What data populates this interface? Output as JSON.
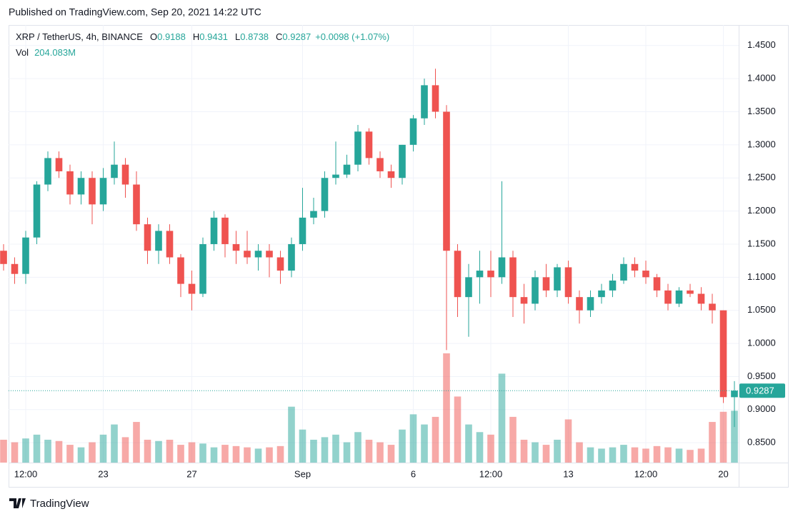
{
  "chart_data": {
    "type": "candlestick",
    "published": "Published on TradingView.com, Sep 20, 2021 14:22 UTC",
    "symbol": "XRP / TetherUS, 4h, BINANCE",
    "ohlc_letters": [
      "O",
      "H",
      "L",
      "C"
    ],
    "change": "+0.0098 (+1.07%)",
    "volume_name": "Vol",
    "last_volume_label": "204.083M",
    "brand": "TradingView",
    "up_color": "#26a69a",
    "down_color": "#ef5350",
    "grid": true,
    "categories": [
      null,
      null,
      "12:00",
      null,
      null,
      null,
      null,
      null,
      null,
      "23",
      null,
      null,
      null,
      null,
      null,
      null,
      null,
      "27",
      null,
      null,
      null,
      null,
      null,
      null,
      null,
      null,
      null,
      "Sep",
      null,
      null,
      null,
      null,
      null,
      null,
      null,
      null,
      null,
      "6",
      null,
      null,
      null,
      null,
      null,
      null,
      "12:00",
      null,
      null,
      null,
      null,
      null,
      null,
      "13",
      null,
      null,
      null,
      null,
      null,
      null,
      "12:00",
      null,
      null,
      null,
      null,
      null,
      null,
      "20",
      null
    ],
    "open": [
      1.14,
      1.12,
      1.105,
      1.16,
      1.24,
      1.28,
      1.26,
      1.225,
      1.25,
      1.21,
      1.25,
      1.27,
      1.24,
      1.18,
      1.14,
      1.17,
      1.13,
      1.09,
      1.075,
      1.15,
      1.19,
      1.15,
      1.14,
      1.13,
      1.14,
      1.13,
      1.11,
      1.15,
      1.19,
      1.2,
      1.25,
      1.255,
      1.27,
      1.32,
      1.28,
      1.26,
      1.25,
      1.3,
      1.34,
      1.39,
      1.35,
      1.14,
      1.07,
      1.1,
      1.11,
      1.1,
      1.13,
      1.07,
      1.06,
      1.1,
      1.08,
      1.115,
      1.07,
      1.05,
      1.07,
      1.08,
      1.095,
      1.12,
      1.11,
      1.1,
      1.08,
      1.06,
      1.08,
      1.075,
      1.06,
      1.05,
      0.9188
    ],
    "high": [
      1.15,
      1.13,
      1.17,
      1.245,
      1.29,
      1.29,
      1.27,
      1.26,
      1.26,
      1.265,
      1.305,
      1.28,
      1.26,
      1.19,
      1.18,
      1.18,
      1.135,
      1.11,
      1.16,
      1.2,
      1.195,
      1.17,
      1.17,
      1.15,
      1.15,
      1.14,
      1.16,
      1.235,
      1.22,
      1.26,
      1.305,
      1.285,
      1.33,
      1.325,
      1.29,
      1.27,
      1.3,
      1.345,
      1.4,
      1.415,
      1.36,
      1.15,
      1.12,
      1.14,
      1.14,
      1.245,
      1.14,
      1.09,
      1.11,
      1.12,
      1.12,
      1.125,
      1.08,
      1.08,
      1.09,
      1.105,
      1.13,
      1.13,
      1.125,
      1.105,
      1.09,
      1.085,
      1.09,
      1.085,
      1.075,
      1.05,
      0.9431
    ],
    "low": [
      1.11,
      1.09,
      1.09,
      1.15,
      1.23,
      1.25,
      1.21,
      1.21,
      1.18,
      1.2,
      1.24,
      1.22,
      1.17,
      1.12,
      1.12,
      1.12,
      1.07,
      1.05,
      1.07,
      1.14,
      1.13,
      1.12,
      1.12,
      1.11,
      1.1,
      1.09,
      1.1,
      1.14,
      1.18,
      1.19,
      1.24,
      1.25,
      1.26,
      1.27,
      1.25,
      1.235,
      1.24,
      1.29,
      1.33,
      1.34,
      0.99,
      1.04,
      1.01,
      1.06,
      1.07,
      1.09,
      1.04,
      1.03,
      1.05,
      1.07,
      1.07,
      1.06,
      1.03,
      1.04,
      1.06,
      1.07,
      1.09,
      1.1,
      1.09,
      1.07,
      1.05,
      1.055,
      1.07,
      1.05,
      1.03,
      0.91,
      0.8738
    ],
    "close": [
      1.12,
      1.105,
      1.16,
      1.24,
      1.28,
      1.26,
      1.225,
      1.25,
      1.21,
      1.25,
      1.27,
      1.24,
      1.18,
      1.14,
      1.17,
      1.13,
      1.09,
      1.075,
      1.15,
      1.19,
      1.15,
      1.14,
      1.13,
      1.14,
      1.13,
      1.11,
      1.15,
      1.19,
      1.2,
      1.25,
      1.255,
      1.27,
      1.32,
      1.28,
      1.26,
      1.25,
      1.3,
      1.34,
      1.39,
      1.35,
      1.14,
      1.07,
      1.1,
      1.11,
      1.1,
      1.13,
      1.07,
      1.06,
      1.1,
      1.08,
      1.115,
      1.07,
      1.05,
      1.07,
      1.08,
      1.095,
      1.12,
      1.11,
      1.1,
      1.08,
      1.06,
      1.08,
      1.075,
      1.06,
      1.05,
      0.9189,
      0.9287
    ],
    "volume": [
      90,
      80,
      95,
      110,
      90,
      85,
      70,
      60,
      80,
      110,
      150,
      100,
      160,
      90,
      85,
      90,
      70,
      80,
      75,
      60,
      70,
      65,
      60,
      55,
      60,
      65,
      220,
      130,
      90,
      100,
      110,
      80,
      120,
      90,
      80,
      70,
      130,
      190,
      150,
      180,
      430,
      260,
      150,
      120,
      110,
      350,
      180,
      90,
      80,
      70,
      90,
      170,
      80,
      60,
      55,
      60,
      70,
      60,
      55,
      65,
      60,
      55,
      50,
      55,
      160,
      200,
      204.083
    ],
    "ylim": [
      0.82,
      1.481
    ],
    "yticks": [
      {
        "value": 0.85,
        "label": "0.8500"
      },
      {
        "value": 0.9,
        "label": "0.9000"
      },
      {
        "value": 0.95,
        "label": "0.9500"
      },
      {
        "value": 1.0,
        "label": "1.0000"
      },
      {
        "value": 1.05,
        "label": "1.0500"
      },
      {
        "value": 1.1,
        "label": "1.1000"
      },
      {
        "value": 1.15,
        "label": "1.1500"
      },
      {
        "value": 1.2,
        "label": "1.2000"
      },
      {
        "value": 1.25,
        "label": "1.2500"
      },
      {
        "value": 1.3,
        "label": "1.3000"
      },
      {
        "value": 1.35,
        "label": "1.3500"
      },
      {
        "value": 1.4,
        "label": "1.4000"
      },
      {
        "value": 1.45,
        "label": "1.4500"
      }
    ]
  }
}
